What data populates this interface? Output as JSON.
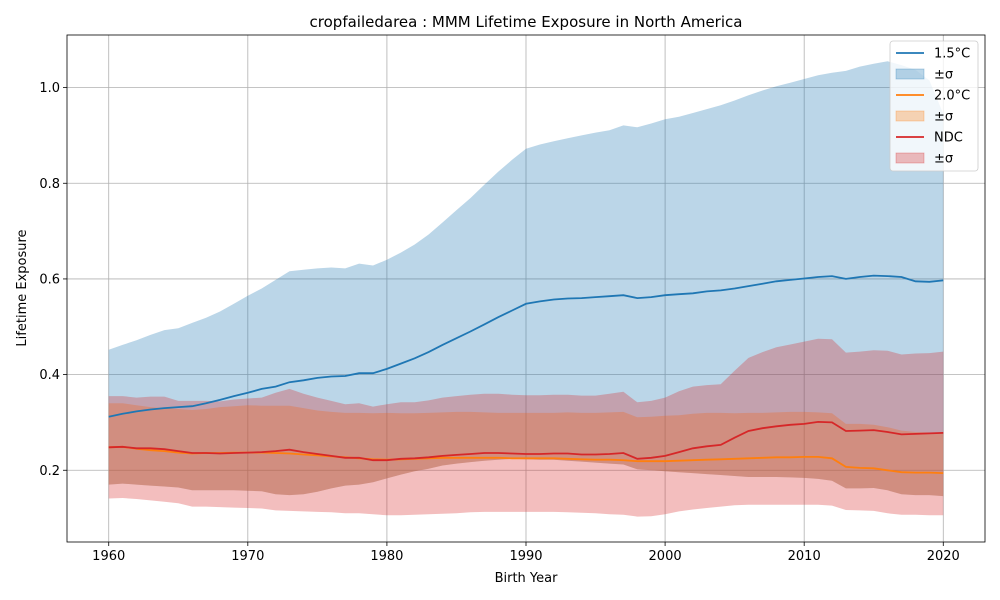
{
  "chart_data": {
    "type": "line",
    "title": "cropfailedarea : MMM Lifetime Exposure in North America",
    "xlabel": "Birth Year",
    "ylabel": "Lifetime Exposure",
    "xlim": [
      1957,
      2023
    ],
    "ylim": [
      0.05,
      1.11
    ],
    "xticks": [
      1960,
      1970,
      1980,
      1990,
      2000,
      2010,
      2020
    ],
    "yticks": [
      0.2,
      0.4,
      0.6,
      0.8,
      1.0
    ],
    "xtick_labels": [
      "1960",
      "1970",
      "1980",
      "1990",
      "2000",
      "2010",
      "2020"
    ],
    "ytick_labels": [
      "0.2",
      "0.4",
      "0.6",
      "0.8",
      "1.0"
    ],
    "grid": true,
    "legend_position": "top-right",
    "legend": [
      {
        "label": "1.5°C",
        "kind": "line",
        "series": 0
      },
      {
        "label": "±σ",
        "kind": "band",
        "series": 0
      },
      {
        "label": "2.0°C",
        "kind": "line",
        "series": 1
      },
      {
        "label": "±σ",
        "kind": "band",
        "series": 1
      },
      {
        "label": "NDC",
        "kind": "line",
        "series": 2
      },
      {
        "label": "±σ",
        "kind": "band",
        "series": 2
      }
    ],
    "x": [
      1960,
      1961,
      1962,
      1963,
      1964,
      1965,
      1966,
      1967,
      1968,
      1969,
      1970,
      1971,
      1972,
      1973,
      1974,
      1975,
      1976,
      1977,
      1978,
      1979,
      1980,
      1981,
      1982,
      1983,
      1984,
      1985,
      1986,
      1987,
      1988,
      1989,
      1990,
      1991,
      1992,
      1993,
      1994,
      1995,
      1996,
      1997,
      1998,
      1999,
      2000,
      2001,
      2002,
      2003,
      2004,
      2005,
      2006,
      2007,
      2008,
      2009,
      2010,
      2011,
      2012,
      2013,
      2014,
      2015,
      2016,
      2017,
      2018,
      2019,
      2020
    ],
    "series": [
      {
        "name": "1.5°C",
        "color": "#1f77b4",
        "band_color": "#1f77b4",
        "mean": [
          0.312,
          0.318,
          0.323,
          0.327,
          0.33,
          0.332,
          0.334,
          0.34,
          0.347,
          0.355,
          0.362,
          0.37,
          0.375,
          0.384,
          0.388,
          0.393,
          0.396,
          0.397,
          0.403,
          0.403,
          0.412,
          0.423,
          0.434,
          0.447,
          0.462,
          0.476,
          0.49,
          0.505,
          0.52,
          0.534,
          0.548,
          0.553,
          0.557,
          0.559,
          0.56,
          0.562,
          0.564,
          0.566,
          0.56,
          0.562,
          0.566,
          0.568,
          0.57,
          0.574,
          0.576,
          0.58,
          0.585,
          0.59,
          0.595,
          0.598,
          0.601,
          0.604,
          0.606,
          0.6,
          0.604,
          0.607,
          0.606,
          0.604,
          0.595,
          0.594,
          0.597
        ],
        "upper": [
          0.452,
          0.462,
          0.472,
          0.483,
          0.493,
          0.497,
          0.508,
          0.519,
          0.532,
          0.548,
          0.565,
          0.58,
          0.598,
          0.616,
          0.619,
          0.622,
          0.624,
          0.622,
          0.632,
          0.628,
          0.64,
          0.655,
          0.672,
          0.693,
          0.718,
          0.744,
          0.769,
          0.797,
          0.824,
          0.849,
          0.872,
          0.881,
          0.888,
          0.894,
          0.9,
          0.906,
          0.911,
          0.921,
          0.917,
          0.925,
          0.934,
          0.939,
          0.947,
          0.955,
          0.963,
          0.973,
          0.984,
          0.994,
          1.003,
          1.01,
          1.018,
          1.026,
          1.031,
          1.035,
          1.044,
          1.05,
          1.055,
          1.047,
          1.037,
          1.015,
          0.945
        ],
        "lower": [
          0.17,
          0.172,
          0.17,
          0.168,
          0.166,
          0.164,
          0.158,
          0.158,
          0.158,
          0.158,
          0.157,
          0.156,
          0.15,
          0.148,
          0.15,
          0.155,
          0.162,
          0.168,
          0.17,
          0.175,
          0.183,
          0.191,
          0.198,
          0.203,
          0.21,
          0.214,
          0.217,
          0.22,
          0.222,
          0.224,
          0.223,
          0.222,
          0.222,
          0.22,
          0.218,
          0.216,
          0.214,
          0.212,
          0.202,
          0.2,
          0.198,
          0.196,
          0.194,
          0.192,
          0.19,
          0.188,
          0.186,
          0.186,
          0.186,
          0.185,
          0.184,
          0.182,
          0.178,
          0.162,
          0.162,
          0.163,
          0.158,
          0.15,
          0.148,
          0.148,
          0.146
        ]
      },
      {
        "name": "2.0°C",
        "color": "#ff7f0e",
        "band_color": "#ff7f0e",
        "mean": [
          0.248,
          0.249,
          0.245,
          0.242,
          0.24,
          0.237,
          0.235,
          0.236,
          0.236,
          0.237,
          0.237,
          0.237,
          0.236,
          0.235,
          0.233,
          0.231,
          0.229,
          0.227,
          0.225,
          0.223,
          0.222,
          0.223,
          0.224,
          0.225,
          0.226,
          0.226,
          0.226,
          0.226,
          0.226,
          0.225,
          0.225,
          0.225,
          0.225,
          0.224,
          0.223,
          0.222,
          0.222,
          0.221,
          0.219,
          0.219,
          0.219,
          0.22,
          0.221,
          0.222,
          0.223,
          0.224,
          0.225,
          0.226,
          0.227,
          0.227,
          0.228,
          0.228,
          0.225,
          0.207,
          0.205,
          0.204,
          0.2,
          0.196,
          0.195,
          0.195,
          0.194
        ],
        "upper": [
          0.34,
          0.34,
          0.336,
          0.332,
          0.33,
          0.328,
          0.326,
          0.328,
          0.332,
          0.334,
          0.336,
          0.335,
          0.335,
          0.335,
          0.33,
          0.325,
          0.322,
          0.32,
          0.32,
          0.319,
          0.32,
          0.319,
          0.319,
          0.32,
          0.321,
          0.322,
          0.322,
          0.321,
          0.32,
          0.32,
          0.32,
          0.32,
          0.32,
          0.321,
          0.32,
          0.32,
          0.321,
          0.322,
          0.311,
          0.312,
          0.314,
          0.315,
          0.318,
          0.32,
          0.32,
          0.319,
          0.32,
          0.32,
          0.321,
          0.322,
          0.322,
          0.321,
          0.319,
          0.297,
          0.297,
          0.295,
          0.29,
          0.283,
          0.28,
          0.279,
          0.278
        ],
        "lower": [
          0.17,
          0.172,
          0.17,
          0.168,
          0.166,
          0.164,
          0.158,
          0.158,
          0.158,
          0.158,
          0.157,
          0.156,
          0.15,
          0.148,
          0.15,
          0.155,
          0.162,
          0.168,
          0.17,
          0.175,
          0.183,
          0.191,
          0.198,
          0.203,
          0.21,
          0.214,
          0.217,
          0.22,
          0.222,
          0.224,
          0.223,
          0.222,
          0.222,
          0.22,
          0.218,
          0.216,
          0.214,
          0.212,
          0.202,
          0.2,
          0.198,
          0.196,
          0.194,
          0.192,
          0.19,
          0.188,
          0.186,
          0.186,
          0.186,
          0.185,
          0.184,
          0.182,
          0.178,
          0.162,
          0.162,
          0.163,
          0.158,
          0.15,
          0.148,
          0.148,
          0.146
        ]
      },
      {
        "name": "NDC",
        "color": "#d62728",
        "band_color": "#d62728",
        "mean": [
          0.248,
          0.249,
          0.246,
          0.246,
          0.244,
          0.24,
          0.236,
          0.236,
          0.235,
          0.236,
          0.237,
          0.238,
          0.24,
          0.243,
          0.238,
          0.234,
          0.23,
          0.226,
          0.226,
          0.221,
          0.221,
          0.224,
          0.225,
          0.227,
          0.23,
          0.232,
          0.234,
          0.236,
          0.236,
          0.235,
          0.234,
          0.234,
          0.235,
          0.235,
          0.233,
          0.233,
          0.234,
          0.236,
          0.224,
          0.226,
          0.23,
          0.238,
          0.246,
          0.25,
          0.253,
          0.268,
          0.282,
          0.288,
          0.292,
          0.295,
          0.297,
          0.301,
          0.3,
          0.282,
          0.283,
          0.284,
          0.28,
          0.275,
          0.276,
          0.277,
          0.278
        ],
        "upper": [
          0.355,
          0.355,
          0.352,
          0.354,
          0.354,
          0.345,
          0.345,
          0.345,
          0.344,
          0.348,
          0.35,
          0.352,
          0.362,
          0.37,
          0.36,
          0.352,
          0.345,
          0.338,
          0.34,
          0.333,
          0.338,
          0.342,
          0.342,
          0.346,
          0.352,
          0.355,
          0.358,
          0.36,
          0.36,
          0.358,
          0.357,
          0.357,
          0.358,
          0.358,
          0.356,
          0.356,
          0.36,
          0.364,
          0.342,
          0.345,
          0.352,
          0.365,
          0.375,
          0.378,
          0.38,
          0.408,
          0.435,
          0.447,
          0.457,
          0.463,
          0.469,
          0.475,
          0.474,
          0.446,
          0.448,
          0.451,
          0.45,
          0.442,
          0.444,
          0.445,
          0.448
        ],
        "lower": [
          0.141,
          0.142,
          0.14,
          0.137,
          0.134,
          0.131,
          0.124,
          0.124,
          0.123,
          0.122,
          0.121,
          0.12,
          0.116,
          0.115,
          0.114,
          0.113,
          0.112,
          0.11,
          0.11,
          0.108,
          0.106,
          0.106,
          0.107,
          0.108,
          0.109,
          0.11,
          0.112,
          0.113,
          0.113,
          0.113,
          0.113,
          0.113,
          0.113,
          0.112,
          0.111,
          0.11,
          0.108,
          0.107,
          0.103,
          0.104,
          0.108,
          0.114,
          0.118,
          0.121,
          0.124,
          0.127,
          0.128,
          0.128,
          0.128,
          0.128,
          0.128,
          0.128,
          0.126,
          0.117,
          0.116,
          0.115,
          0.11,
          0.107,
          0.107,
          0.106,
          0.106
        ]
      }
    ]
  }
}
